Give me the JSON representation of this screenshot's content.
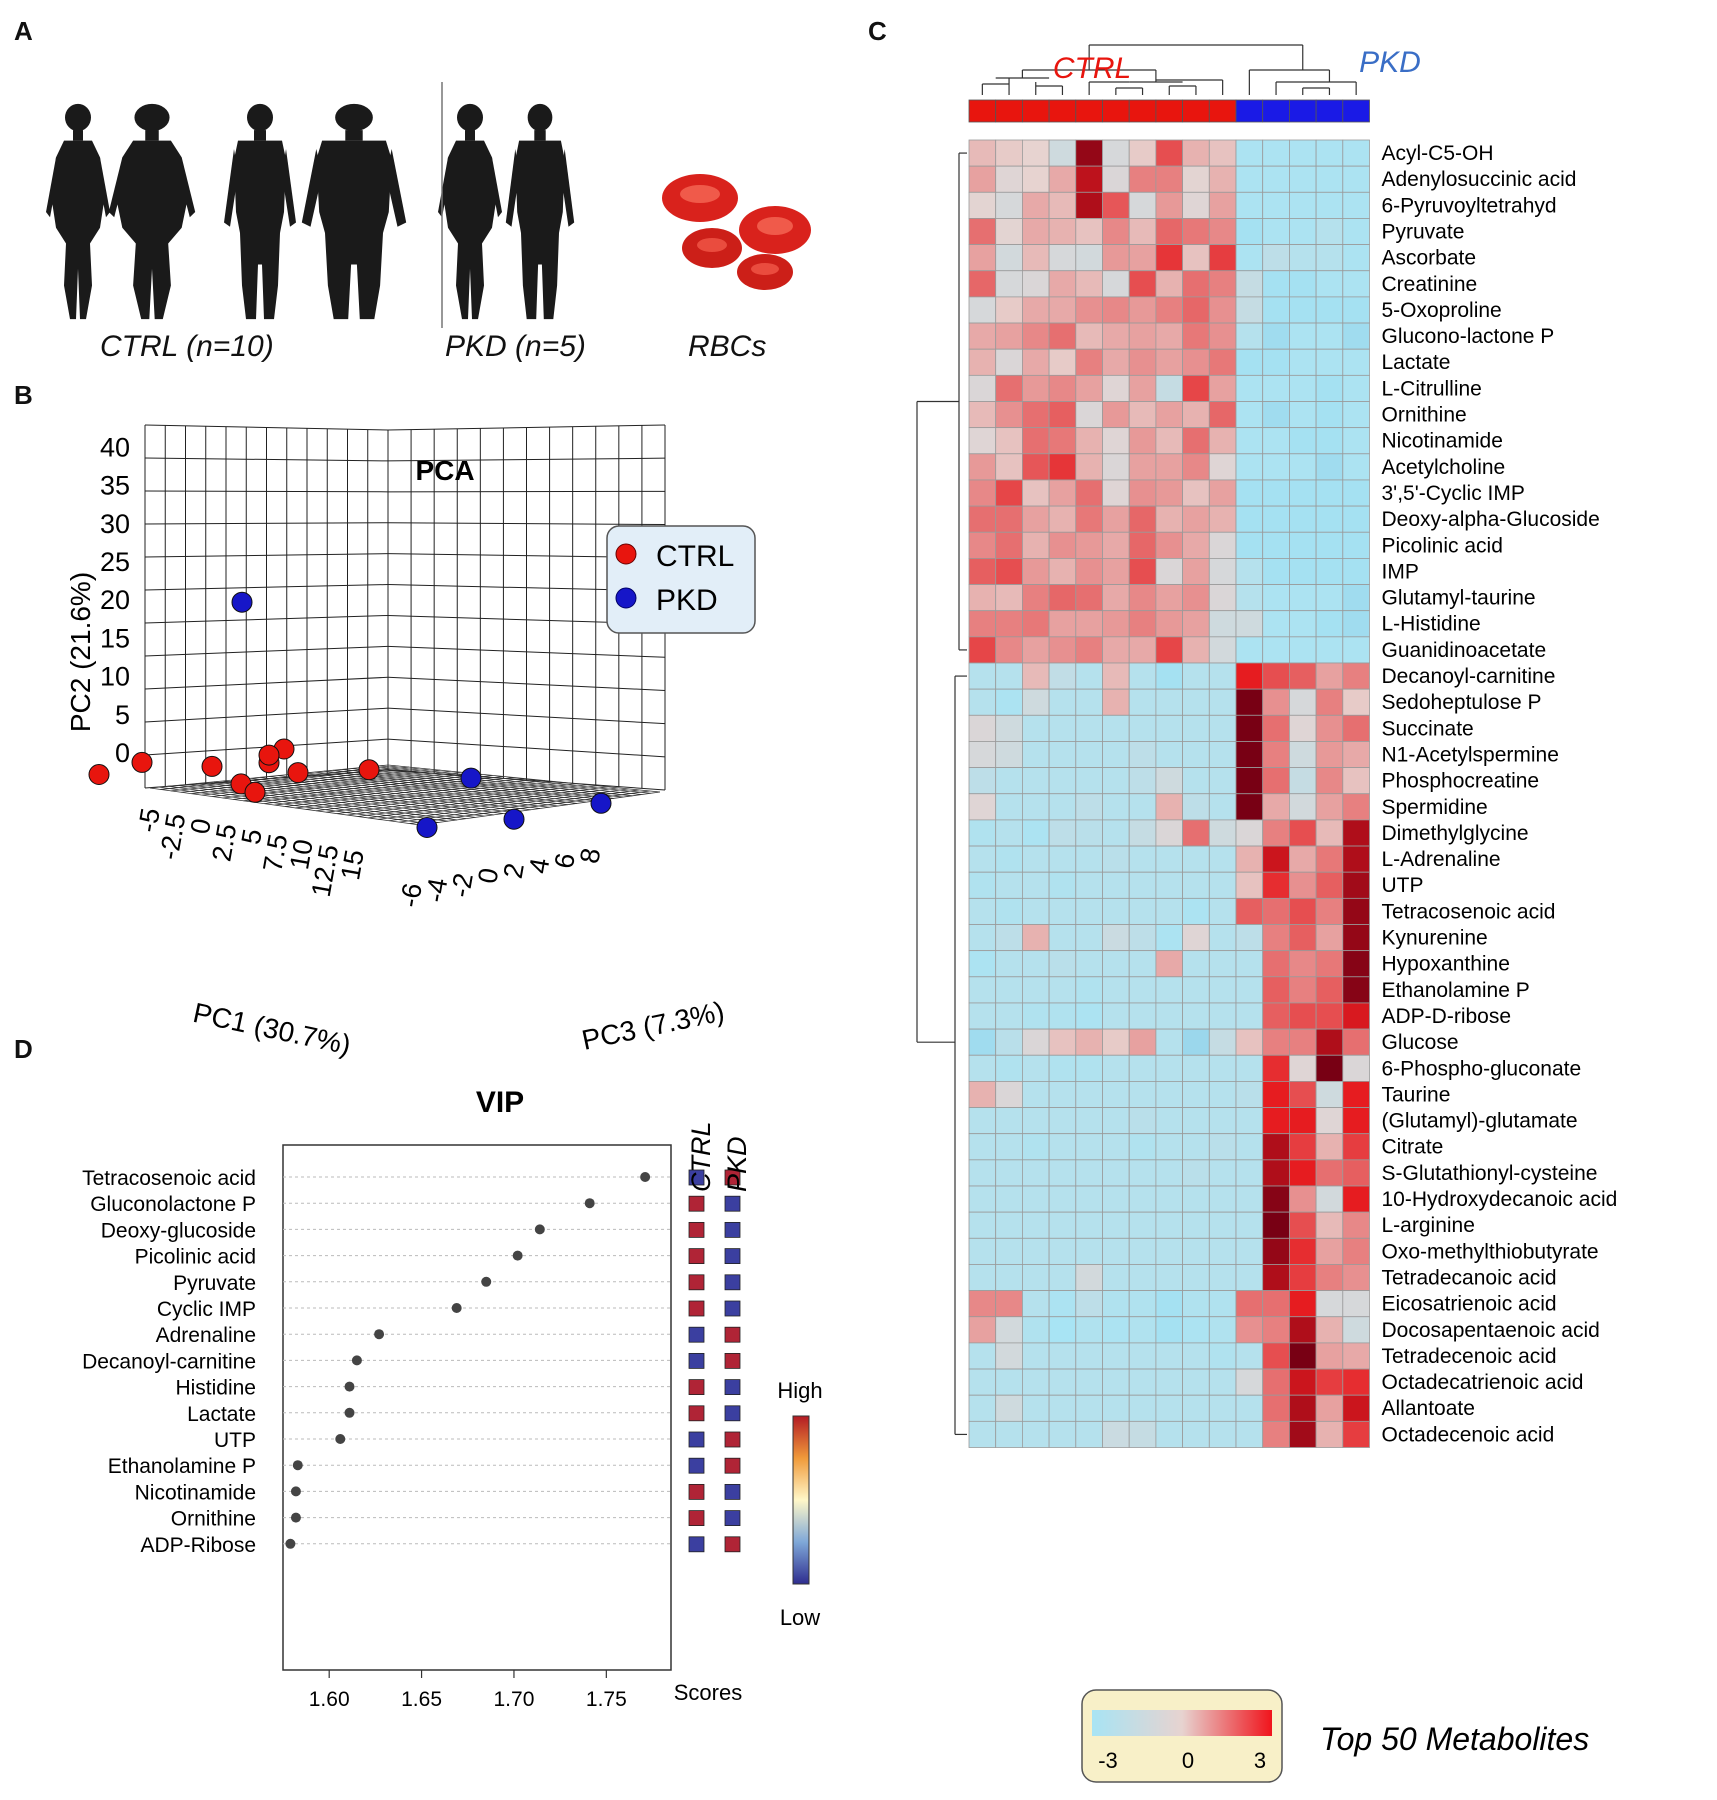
{
  "panels": {
    "a": "A",
    "b": "B",
    "c": "C",
    "d": "D"
  },
  "panel_a": {
    "ctrl_label": "CTRL (n=10)",
    "pkd_label": "PKD (n=5)",
    "rbc_label": "RBCs",
    "icons": [
      "person-female-icon",
      "person-female-icon",
      "person-male-icon",
      "person-male-icon",
      "person-female-icon",
      "person-male-icon",
      "red-blood-cell-icon"
    ]
  },
  "chart_data": [
    {
      "type": "scatter",
      "title": "PCA",
      "xlabel": "PC1 (30.7%)",
      "ylabel": "PC2 (21.6%)",
      "zlabel": "PC3 (7.3%)",
      "pc1_ticks": [
        "-5",
        "-2.5",
        "0",
        "2.5",
        "5",
        "7.5",
        "10",
        "12.5",
        "15"
      ],
      "pc2_ticks": [
        "0",
        "5",
        "10",
        "15",
        "20",
        "25",
        "30",
        "35",
        "40"
      ],
      "pc3_ticks": [
        "-6",
        "-4",
        "-2",
        "0",
        "2",
        "4",
        "6",
        "8"
      ],
      "legend": [
        {
          "name": "CTRL",
          "color": "#e8150e"
        },
        {
          "name": "PKD",
          "color": "#1616c8"
        }
      ],
      "series": [
        {
          "name": "CTRL",
          "points": [
            [
              -4,
              -2,
              -5
            ],
            [
              -2,
              0,
              -4
            ],
            [
              3,
              0,
              -4
            ],
            [
              4,
              -2,
              -3
            ],
            [
              5,
              -3,
              -3
            ],
            [
              6,
              1,
              -3
            ],
            [
              6,
              3,
              -2
            ],
            [
              6,
              2,
              -3
            ],
            [
              7,
              0,
              -2
            ],
            [
              11,
              1,
              -1
            ]
          ]
        },
        {
          "name": "PKD",
          "points": [
            [
              3,
              22,
              -2
            ],
            [
              13,
              -6,
              1
            ],
            [
              14,
              1,
              3
            ],
            [
              16,
              -4,
              4
            ],
            [
              19,
              -1,
              7
            ]
          ]
        }
      ]
    },
    {
      "type": "heatmap",
      "title": "Top 50 Metabolites",
      "groups": [
        {
          "name": "CTRL",
          "n": 10,
          "color": "#e8150e"
        },
        {
          "name": "PKD",
          "n": 5,
          "color": "#1a1ae6"
        }
      ],
      "scale": {
        "min": -3,
        "mid": 0,
        "max": 3,
        "labels": [
          "-3",
          "0",
          "3"
        ]
      },
      "rows": [
        "Acyl-C5-OH",
        "Adenylosuccinic acid",
        "6-Pyruvoyltetrahyd",
        "Pyruvate",
        "Ascorbate",
        "Creatinine",
        "5-Oxoproline",
        "Glucono-lactone P",
        "Lactate",
        "L-Citrulline",
        "Ornithine",
        "Nicotinamide",
        "Acetylcholine",
        "3',5'-Cyclic IMP",
        "Deoxy-alpha-Glucoside",
        "Picolinic acid",
        "IMP",
        "Glutamyl-taurine",
        "L-Histidine",
        "Guanidinoacetate",
        "Decanoyl-carnitine",
        "Sedoheptulose P",
        "Succinate",
        "N1-Acetylspermine",
        "Phosphocreatine",
        "Spermidine",
        "Dimethylglycine",
        "L-Adrenaline",
        "UTP",
        "Tetracosenoic acid",
        "Kynurenine",
        "Hypoxanthine",
        "Ethanolamine P",
        "ADP-D-ribose",
        "Glucose",
        "6-Phospho-gluconate",
        "Taurine",
        "(Glutamyl)-glutamate",
        "Citrate",
        "S-Glutathionyl-cysteine",
        "10-Hydroxydecanoic acid",
        "L-arginine",
        "Oxo-methylthiobutyrate",
        "Tetradecanoic acid",
        "Eicosatrienoic acid",
        "Docosapentaenoic acid",
        "Tetradecenoic acid",
        "Octadecatrienoic acid",
        "Allantoate",
        "Octadecenoic acid"
      ],
      "values": [
        [
          0.3,
          0.1,
          0.0,
          -0.6,
          2.8,
          -0.4,
          0.1,
          1.6,
          0.4,
          0.2,
          -1.4,
          -1.4,
          -1.4,
          -1.4,
          -1.4
        ],
        [
          0.6,
          -0.2,
          0.0,
          0.5,
          2.5,
          -0.3,
          1.0,
          1.0,
          -0.1,
          0.4,
          -1.4,
          -1.4,
          -1.4,
          -1.4,
          -1.4
        ],
        [
          -0.1,
          -0.4,
          0.5,
          0.3,
          2.6,
          1.5,
          -0.4,
          0.7,
          -0.2,
          0.6,
          -1.4,
          -1.4,
          -1.4,
          -1.4,
          -1.4
        ],
        [
          1.2,
          -0.1,
          0.5,
          0.4,
          0.2,
          0.9,
          0.3,
          1.3,
          1.1,
          0.9,
          -1.6,
          -1.4,
          -1.4,
          -1.2,
          -1.4
        ],
        [
          0.6,
          -0.5,
          0.3,
          -0.4,
          -0.5,
          0.7,
          0.6,
          1.9,
          0.2,
          1.8,
          -1.4,
          -1.0,
          -1.2,
          -1.2,
          -1.4
        ],
        [
          1.3,
          -0.4,
          -0.3,
          0.5,
          0.3,
          -0.4,
          1.6,
          0.4,
          1.2,
          1.0,
          -0.8,
          -1.6,
          -1.6,
          -1.4,
          -1.4
        ],
        [
          -0.4,
          0.1,
          0.5,
          0.5,
          0.8,
          0.9,
          0.7,
          1.0,
          1.3,
          0.8,
          -0.8,
          -1.6,
          -1.6,
          -1.6,
          -1.6
        ],
        [
          0.5,
          0.6,
          0.9,
          1.2,
          0.3,
          0.5,
          0.6,
          0.5,
          1.1,
          0.8,
          -1.2,
          -1.8,
          -1.4,
          -1.4,
          -1.8
        ],
        [
          0.4,
          -0.3,
          0.5,
          0.1,
          1.0,
          0.5,
          0.8,
          0.6,
          0.8,
          1.1,
          -1.6,
          -1.6,
          -1.4,
          -1.4,
          -1.4
        ],
        [
          -0.3,
          1.2,
          0.7,
          0.9,
          0.6,
          -0.2,
          0.6,
          -0.8,
          1.7,
          0.6,
          -1.4,
          -1.4,
          -1.4,
          -1.6,
          -1.4
        ],
        [
          0.3,
          0.8,
          1.2,
          1.4,
          -0.3,
          0.7,
          0.3,
          0.6,
          0.4,
          1.3,
          -1.4,
          -1.8,
          -1.4,
          -1.6,
          -1.4
        ],
        [
          -0.2,
          0.2,
          1.2,
          1.1,
          0.4,
          -0.2,
          0.7,
          0.3,
          1.2,
          0.4,
          -1.4,
          -1.4,
          -1.6,
          -1.6,
          -1.4
        ],
        [
          0.7,
          0.2,
          1.5,
          1.9,
          0.4,
          -0.3,
          0.6,
          0.6,
          0.9,
          -0.2,
          -1.4,
          -1.4,
          -1.4,
          -1.8,
          -1.4
        ],
        [
          0.9,
          1.7,
          0.2,
          0.6,
          1.2,
          -0.2,
          0.8,
          0.7,
          0.2,
          0.6,
          -1.6,
          -1.6,
          -1.6,
          -1.6,
          -1.6
        ],
        [
          1.2,
          1.2,
          0.6,
          0.4,
          1.1,
          0.6,
          1.3,
          0.4,
          0.6,
          0.4,
          -1.6,
          -1.6,
          -1.6,
          -1.6,
          -1.6
        ],
        [
          0.9,
          1.2,
          0.4,
          0.8,
          0.7,
          0.5,
          1.3,
          0.8,
          0.5,
          -0.3,
          -1.6,
          -1.6,
          -1.6,
          -1.6,
          -1.6
        ],
        [
          1.4,
          1.6,
          0.7,
          0.4,
          0.8,
          0.6,
          1.6,
          -0.3,
          0.6,
          -0.4,
          -1.2,
          -1.6,
          -1.6,
          -1.6,
          -1.6
        ],
        [
          0.4,
          0.3,
          1.0,
          1.3,
          1.2,
          0.5,
          0.9,
          0.6,
          0.8,
          -0.3,
          -1.2,
          -1.4,
          -1.4,
          -1.4,
          -1.8
        ],
        [
          1.0,
          1.0,
          1.1,
          0.6,
          0.6,
          0.7,
          1.0,
          0.7,
          0.6,
          -0.6,
          -0.6,
          -1.4,
          -1.4,
          -1.6,
          -1.8
        ],
        [
          1.7,
          0.9,
          0.6,
          0.8,
          1.0,
          0.5,
          0.5,
          1.7,
          0.4,
          -0.5,
          -1.4,
          -1.4,
          -1.4,
          -1.4,
          -1.4
        ],
        [
          -1.2,
          -1.2,
          0.3,
          -0.9,
          -1.2,
          0.3,
          -1.2,
          -1.6,
          -1.2,
          -1.2,
          2.2,
          1.6,
          1.4,
          0.6,
          1.0
        ],
        [
          -1.2,
          -1.4,
          -0.6,
          -1.2,
          -1.2,
          0.4,
          -1.2,
          -1.2,
          -1.2,
          -1.2,
          3.0,
          0.8,
          -0.4,
          1.0,
          0.1
        ],
        [
          -0.3,
          -0.6,
          -1.2,
          -1.2,
          -1.2,
          -1.2,
          -1.2,
          -1.2,
          -1.2,
          -1.2,
          3.0,
          1.2,
          -0.2,
          0.8,
          1.2
        ],
        [
          -0.4,
          -0.6,
          -1.2,
          -1.2,
          -1.2,
          -1.2,
          -1.0,
          -1.2,
          -1.2,
          -1.2,
          3.0,
          1.0,
          -0.6,
          0.7,
          0.5
        ],
        [
          -1.0,
          -1.2,
          -1.2,
          -1.2,
          -1.2,
          -1.2,
          -1.0,
          -0.6,
          -1.2,
          -1.2,
          3.0,
          1.2,
          -0.8,
          0.9,
          0.2
        ],
        [
          -0.2,
          -1.2,
          -1.2,
          -1.2,
          -1.0,
          -1.2,
          -1.2,
          0.4,
          -1.0,
          -1.2,
          3.0,
          0.5,
          -0.5,
          0.6,
          1.0
        ],
        [
          -1.3,
          -1.2,
          -1.4,
          -1.0,
          -1.1,
          -1.2,
          -0.8,
          -0.3,
          1.2,
          -0.6,
          -0.3,
          1.0,
          1.6,
          0.3,
          2.6
        ],
        [
          -1.2,
          -1.3,
          -1.2,
          -1.2,
          -1.2,
          -1.1,
          -1.2,
          -1.2,
          -1.2,
          -1.2,
          0.4,
          2.4,
          0.5,
          1.1,
          2.6
        ],
        [
          -1.3,
          -1.2,
          -1.2,
          -1.3,
          -1.2,
          -1.2,
          -1.2,
          -1.2,
          -1.2,
          -1.2,
          0.2,
          2.0,
          0.8,
          1.4,
          2.7
        ],
        [
          -1.2,
          -1.3,
          -1.2,
          -1.2,
          -1.2,
          -1.2,
          -1.2,
          -1.2,
          -1.4,
          -1.2,
          1.4,
          1.2,
          1.6,
          1.0,
          2.8
        ],
        [
          -1.2,
          -1.0,
          0.4,
          -1.2,
          -1.2,
          -0.7,
          -1.0,
          -1.4,
          -0.2,
          -1.2,
          -1.0,
          1.0,
          1.4,
          0.6,
          2.8
        ],
        [
          -1.4,
          -1.2,
          -1.2,
          -1.1,
          -1.2,
          -1.2,
          -1.2,
          0.5,
          -1.2,
          -1.2,
          -1.2,
          1.2,
          0.9,
          1.1,
          2.9
        ],
        [
          -1.2,
          -1.2,
          -1.2,
          -1.2,
          -1.3,
          -1.2,
          -1.2,
          -1.2,
          -1.2,
          -1.2,
          -1.2,
          1.4,
          1.0,
          1.4,
          2.9
        ],
        [
          -1.2,
          -1.2,
          -1.3,
          -1.3,
          -1.4,
          -1.2,
          -1.2,
          -1.2,
          -1.2,
          -1.2,
          -1.2,
          1.4,
          1.6,
          1.6,
          2.3
        ],
        [
          -1.8,
          -1.1,
          -0.3,
          0.2,
          0.4,
          0.1,
          0.6,
          -1.2,
          -2.0,
          -0.8,
          0.2,
          1.0,
          1.0,
          2.6,
          1.2
        ],
        [
          -1.2,
          -1.3,
          -1.2,
          -1.3,
          -1.3,
          -1.2,
          -1.2,
          -1.2,
          -1.2,
          -1.2,
          -1.2,
          2.0,
          -0.2,
          3.0,
          -0.3
        ],
        [
          0.4,
          -0.3,
          -1.2,
          -1.2,
          -1.2,
          -1.2,
          -1.2,
          -1.2,
          -1.2,
          -1.2,
          -1.1,
          2.2,
          1.6,
          -0.6,
          2.2
        ],
        [
          -1.2,
          -1.2,
          -1.2,
          -1.2,
          -1.2,
          -1.2,
          -1.1,
          -1.2,
          -1.2,
          -1.2,
          -1.2,
          2.2,
          2.2,
          -0.2,
          2.2
        ],
        [
          -1.2,
          -1.2,
          -1.3,
          -1.2,
          -1.2,
          -1.2,
          -1.3,
          -1.2,
          -1.2,
          -1.1,
          -1.2,
          2.6,
          1.8,
          0.4,
          1.8
        ],
        [
          -1.2,
          -1.2,
          -1.2,
          -1.2,
          -1.2,
          -1.2,
          -1.2,
          -1.2,
          -1.1,
          -1.2,
          -1.2,
          2.6,
          2.2,
          1.2,
          1.4
        ],
        [
          -1.2,
          -1.2,
          -1.2,
          -1.2,
          -1.2,
          -1.2,
          -1.2,
          -1.2,
          -1.2,
          -1.2,
          -1.2,
          2.9,
          0.8,
          -0.5,
          2.2
        ],
        [
          -1.2,
          -1.2,
          -1.2,
          -1.2,
          -1.2,
          -1.2,
          -1.2,
          -1.2,
          -1.2,
          -1.2,
          -1.2,
          3.0,
          1.6,
          0.3,
          0.9
        ],
        [
          -1.2,
          -1.2,
          -1.2,
          -1.2,
          -1.2,
          -1.2,
          -1.2,
          -1.2,
          -1.2,
          -1.2,
          -1.2,
          2.8,
          2.0,
          0.6,
          1.0
        ],
        [
          -1.2,
          -1.2,
          -1.2,
          -1.2,
          -0.5,
          -1.2,
          -1.2,
          -1.2,
          -1.2,
          -1.2,
          -1.2,
          2.6,
          1.8,
          1.0,
          0.8
        ],
        [
          0.9,
          0.9,
          -1.2,
          -1.4,
          -1.0,
          -1.3,
          -1.3,
          -1.6,
          -1.3,
          -1.3,
          1.2,
          1.2,
          2.2,
          -0.4,
          -0.4
        ],
        [
          0.6,
          -0.5,
          -1.3,
          -1.5,
          -1.3,
          -1.4,
          -1.3,
          -1.6,
          -1.4,
          -1.3,
          0.8,
          1.0,
          2.6,
          0.4,
          -0.6
        ],
        [
          -1.2,
          -0.5,
          -1.2,
          -1.2,
          -1.2,
          -1.2,
          -1.2,
          -1.2,
          -1.2,
          -1.3,
          -1.2,
          1.6,
          3.0,
          0.6,
          0.5
        ],
        [
          -1.2,
          -1.2,
          -1.2,
          -1.2,
          -1.2,
          -1.2,
          -1.2,
          -1.2,
          -1.2,
          -1.2,
          -0.4,
          1.2,
          2.4,
          1.8,
          2.0
        ],
        [
          -1.2,
          -0.6,
          -1.2,
          -1.2,
          -1.2,
          -1.2,
          -1.2,
          -1.2,
          -1.2,
          -1.2,
          -1.2,
          1.2,
          2.6,
          0.6,
          2.4
        ],
        [
          -1.2,
          -1.2,
          -1.2,
          -1.2,
          -1.2,
          -0.7,
          -0.8,
          -1.2,
          -1.2,
          -1.2,
          -1.2,
          1.0,
          2.7,
          0.4,
          1.8
        ]
      ]
    },
    {
      "type": "dot",
      "title": "VIP",
      "xlabel": "Scores",
      "xlim": [
        1.575,
        1.785
      ],
      "x_ticks": [
        "1.60",
        "1.65",
        "1.70",
        "1.75"
      ],
      "side_headers": [
        "CTRL",
        "PKD"
      ],
      "categories": [
        "Tetracosenoic acid",
        "Gluconolactone P",
        "Deoxy-glucoside",
        "Picolinic acid",
        "Pyruvate",
        "Cyclic IMP",
        "Adrenaline",
        "Decanoyl-carnitine",
        "Histidine",
        "Lactate",
        "UTP",
        "Ethanolamine P",
        "Nicotinamide",
        "Ornithine",
        "ADP-Ribose"
      ],
      "values": [
        1.771,
        1.741,
        1.714,
        1.702,
        1.685,
        1.669,
        1.627,
        1.615,
        1.611,
        1.611,
        1.606,
        1.583,
        1.582,
        1.582,
        1.579
      ],
      "high_group": [
        "PKD",
        "CTRL",
        "CTRL",
        "CTRL",
        "CTRL",
        "CTRL",
        "PKD",
        "PKD",
        "CTRL",
        "CTRL",
        "PKD",
        "PKD",
        "CTRL",
        "CTRL",
        "PKD"
      ],
      "legend": {
        "high": "High",
        "low": "Low"
      }
    }
  ],
  "colors": {
    "high_square": "#b02436",
    "low_square": "#3b3fa0",
    "dots": "#444444"
  }
}
